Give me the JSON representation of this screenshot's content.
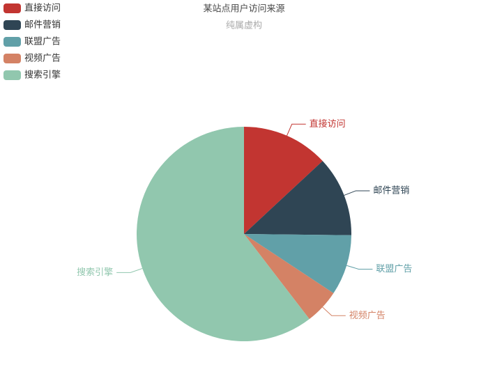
{
  "chart_data": {
    "type": "pie",
    "title": "某站点用户访问来源",
    "subtitle": "纯属虚构",
    "categories": [
      "直接访问",
      "邮件营销",
      "联盟广告",
      "视频广告",
      "搜索引擎"
    ],
    "values": [
      335,
      310,
      234,
      135,
      1548
    ],
    "colors": [
      "#c23531",
      "#2f4554",
      "#61a0a8",
      "#d48265",
      "#91c7ae"
    ]
  }
}
